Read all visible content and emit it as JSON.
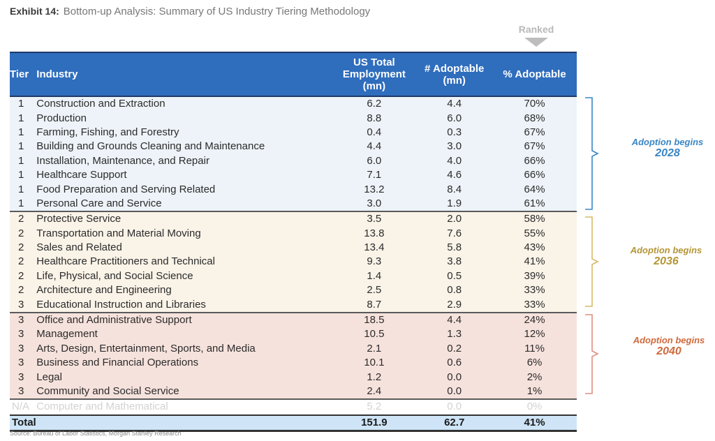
{
  "exhibit": {
    "label": "Exhibit 14:",
    "title": "Bottom-up Analysis: Summary of US Industry Tiering Methodology"
  },
  "ranked_marker": {
    "label": "Ranked",
    "icon": "down-triangle-icon"
  },
  "table": {
    "headers": {
      "tier": "Tier",
      "industry": "Industry",
      "employment_l1": "US Total",
      "employment_l2": "Employment",
      "employment_l3": "(mn)",
      "adoptable_l1": "# Adoptable",
      "adoptable_l2": "(mn)",
      "pct_adoptable": "% Adoptable"
    },
    "rows": [
      {
        "tier": "1",
        "industry": "Construction and Extraction",
        "employment": "6.2",
        "adoptable": "4.4",
        "pct": "70%",
        "group": 1
      },
      {
        "tier": "1",
        "industry": "Production",
        "employment": "8.8",
        "adoptable": "6.0",
        "pct": "68%",
        "group": 1
      },
      {
        "tier": "1",
        "industry": "Farming, Fishing, and Forestry",
        "employment": "0.4",
        "adoptable": "0.3",
        "pct": "67%",
        "group": 1
      },
      {
        "tier": "1",
        "industry": "Building and Grounds Cleaning and Maintenance",
        "employment": "4.4",
        "adoptable": "3.0",
        "pct": "67%",
        "group": 1
      },
      {
        "tier": "1",
        "industry": "Installation, Maintenance, and Repair",
        "employment": "6.0",
        "adoptable": "4.0",
        "pct": "66%",
        "group": 1
      },
      {
        "tier": "1",
        "industry": "Healthcare Support",
        "employment": "7.1",
        "adoptable": "4.6",
        "pct": "66%",
        "group": 1
      },
      {
        "tier": "1",
        "industry": "Food Preparation and Serving Related",
        "employment": "13.2",
        "adoptable": "8.4",
        "pct": "64%",
        "group": 1
      },
      {
        "tier": "1",
        "industry": "Personal Care and Service",
        "employment": "3.0",
        "adoptable": "1.9",
        "pct": "61%",
        "group": 1
      },
      {
        "tier": "2",
        "industry": "Protective Service",
        "employment": "3.5",
        "adoptable": "2.0",
        "pct": "58%",
        "group": 2
      },
      {
        "tier": "2",
        "industry": "Transportation and Material Moving",
        "employment": "13.8",
        "adoptable": "7.6",
        "pct": "55%",
        "group": 2
      },
      {
        "tier": "2",
        "industry": "Sales and Related",
        "employment": "13.4",
        "adoptable": "5.8",
        "pct": "43%",
        "group": 2
      },
      {
        "tier": "2",
        "industry": "Healthcare Practitioners and Technical",
        "employment": "9.3",
        "adoptable": "3.8",
        "pct": "41%",
        "group": 2
      },
      {
        "tier": "2",
        "industry": "Life, Physical, and Social Science",
        "employment": "1.4",
        "adoptable": "0.5",
        "pct": "39%",
        "group": 2
      },
      {
        "tier": "2",
        "industry": "Architecture and Engineering",
        "employment": "2.5",
        "adoptable": "0.8",
        "pct": "33%",
        "group": 2
      },
      {
        "tier": "3",
        "industry": "Educational Instruction and Libraries",
        "employment": "8.7",
        "adoptable": "2.9",
        "pct": "33%",
        "group": 2
      },
      {
        "tier": "3",
        "industry": "Office and Administrative Support",
        "employment": "18.5",
        "adoptable": "4.4",
        "pct": "24%",
        "group": 3
      },
      {
        "tier": "3",
        "industry": "Management",
        "employment": "10.5",
        "adoptable": "1.3",
        "pct": "12%",
        "group": 3
      },
      {
        "tier": "3",
        "industry": "Arts, Design, Entertainment, Sports, and Media",
        "employment": "2.1",
        "adoptable": "0.2",
        "pct": "11%",
        "group": 3
      },
      {
        "tier": "3",
        "industry": "Business and Financial Operations",
        "employment": "10.1",
        "adoptable": "0.6",
        "pct": "6%",
        "group": 3
      },
      {
        "tier": "3",
        "industry": "Legal",
        "employment": "1.2",
        "adoptable": "0.0",
        "pct": "2%",
        "group": 3
      },
      {
        "tier": "3",
        "industry": "Community and Social Service",
        "employment": "2.4",
        "adoptable": "0.0",
        "pct": "1%",
        "group": 3
      },
      {
        "tier": "N/A",
        "industry": "Computer and Mathematical",
        "employment": "5.2",
        "adoptable": "0.0",
        "pct": "0%",
        "group": 0
      }
    ],
    "total": {
      "label": "Total",
      "employment": "151.9",
      "adoptable": "62.7",
      "pct": "41%"
    }
  },
  "annotations": [
    {
      "line1": "Adoption begins",
      "line2": "2028",
      "color": "#3a86c4"
    },
    {
      "line1": "Adoption begins",
      "line2": "2036",
      "color": "#b49636"
    },
    {
      "line1": "Adoption begins",
      "line2": "2040",
      "color": "#cf6a3e"
    }
  ],
  "colors": {
    "header_bg": "#2f6dbd",
    "tier1_bg": "#edf3f8",
    "tier2_bg": "#faf3e8",
    "tier3_bg": "#f6e2dc",
    "total_bg": "#cfe5f7"
  },
  "source": "Source: Bureau of Labor Statistics, Morgan Stanley Research"
}
